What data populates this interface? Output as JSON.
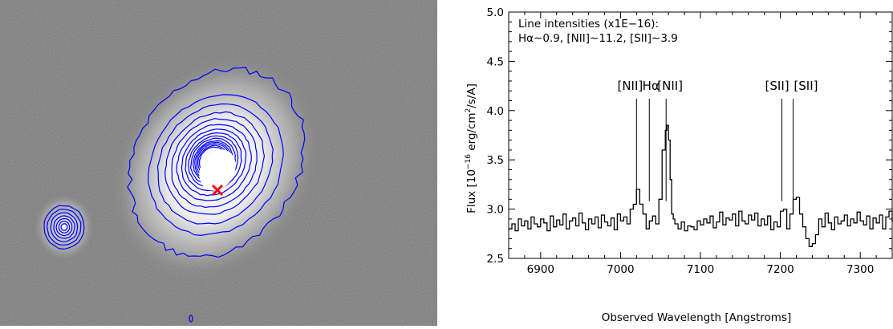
{
  "image_panel": {
    "marker_color": "#ff0000",
    "contour_color": "#0000ff"
  },
  "chart_data": {
    "type": "line",
    "xlabel": "Observed Wavelength [Angstroms]",
    "ylabel_prefix": "Flux  [10",
    "ylabel_exp": "−16",
    "ylabel_unit": " erg/cm",
    "ylabel_sq": "2",
    "ylabel_suffix": "/s/A]",
    "xlim": [
      6860,
      7340
    ],
    "ylim": [
      2.5,
      5.0
    ],
    "xticks": [
      6900,
      7000,
      7100,
      7200,
      7300
    ],
    "xtick_labels": [
      "6900",
      "7000",
      "7100",
      "7200",
      "7300"
    ],
    "yticks": [
      2.5,
      3.0,
      3.5,
      4.0,
      4.5,
      5.0
    ],
    "ytick_labels": [
      "2.5",
      "3.0",
      "3.5",
      "4.0",
      "4.5",
      "5.0"
    ],
    "annotation_line1": "Line intensities (x1E−16):",
    "annotation_line2": "Hα∼0.9, [NII]∼11.2, [SII]∼3.9",
    "line_labels": [
      {
        "text": "[NII]",
        "x": 7020,
        "label_x": 7012
      },
      {
        "text": "Hα",
        "x": 7036,
        "label_x": 7038
      },
      {
        "text": "[NII]",
        "x": 7057,
        "label_x": 7062
      },
      {
        "text": "[SII]",
        "x": 7202,
        "label_x": 7196
      },
      {
        "text": "[SII]",
        "x": 7216,
        "label_x": 7232
      }
    ],
    "series": [
      {
        "x": [
          6860,
          6864,
          6868,
          6872,
          6876,
          6880,
          6884,
          6888,
          6892,
          6896,
          6900,
          6904,
          6908,
          6912,
          6916,
          6920,
          6924,
          6928,
          6932,
          6936,
          6940,
          6944,
          6948,
          6952,
          6956,
          6960,
          6964,
          6968,
          6972,
          6976,
          6980,
          6984,
          6988,
          6992,
          6996,
          7000,
          7004,
          7008,
          7012,
          7016,
          7020,
          7024,
          7028,
          7032,
          7036,
          7040,
          7044,
          7048,
          7052,
          7056,
          7058,
          7060,
          7062,
          7064,
          7066,
          7068,
          7072,
          7076,
          7080,
          7084,
          7088,
          7092,
          7096,
          7100,
          7104,
          7108,
          7112,
          7116,
          7120,
          7124,
          7128,
          7132,
          7136,
          7140,
          7144,
          7148,
          7152,
          7156,
          7160,
          7164,
          7168,
          7172,
          7176,
          7180,
          7184,
          7188,
          7192,
          7196,
          7200,
          7204,
          7208,
          7212,
          7216,
          7220,
          7224,
          7228,
          7232,
          7236,
          7240,
          7244,
          7248,
          7252,
          7256,
          7260,
          7264,
          7268,
          7272,
          7276,
          7280,
          7284,
          7288,
          7292,
          7296,
          7300,
          7304,
          7308,
          7312,
          7316,
          7320,
          7324,
          7328,
          7332,
          7336,
          7340
        ],
        "y": [
          2.8,
          2.85,
          2.78,
          2.9,
          2.83,
          2.88,
          2.8,
          2.92,
          2.85,
          2.82,
          2.9,
          2.86,
          2.78,
          2.93,
          2.82,
          2.89,
          2.84,
          2.95,
          2.8,
          2.88,
          2.91,
          2.83,
          2.96,
          2.86,
          2.79,
          2.9,
          2.85,
          2.92,
          2.81,
          2.94,
          2.87,
          2.83,
          2.91,
          2.79,
          2.95,
          2.88,
          2.92,
          2.85,
          3.0,
          3.05,
          3.2,
          3.05,
          2.95,
          2.8,
          2.88,
          2.93,
          2.85,
          3.1,
          3.6,
          3.8,
          3.85,
          3.7,
          3.3,
          2.95,
          2.9,
          2.85,
          2.8,
          2.87,
          2.78,
          2.83,
          2.82,
          2.79,
          2.88,
          2.84,
          2.9,
          2.86,
          2.93,
          2.81,
          2.87,
          2.97,
          2.84,
          2.91,
          2.89,
          2.95,
          2.83,
          2.98,
          2.88,
          2.85,
          2.94,
          2.89,
          2.96,
          2.83,
          2.9,
          2.84,
          2.93,
          2.79,
          2.87,
          2.82,
          2.98,
          3.0,
          2.8,
          2.95,
          3.1,
          3.12,
          2.95,
          2.82,
          2.7,
          2.62,
          2.65,
          2.74,
          2.9,
          2.82,
          2.96,
          2.86,
          2.79,
          2.92,
          2.85,
          2.88,
          2.94,
          2.83,
          2.9,
          2.86,
          2.97,
          2.88,
          2.84,
          2.93,
          2.8,
          2.91,
          2.86,
          2.94,
          2.8,
          2.92,
          2.98,
          2.88
        ]
      }
    ]
  }
}
